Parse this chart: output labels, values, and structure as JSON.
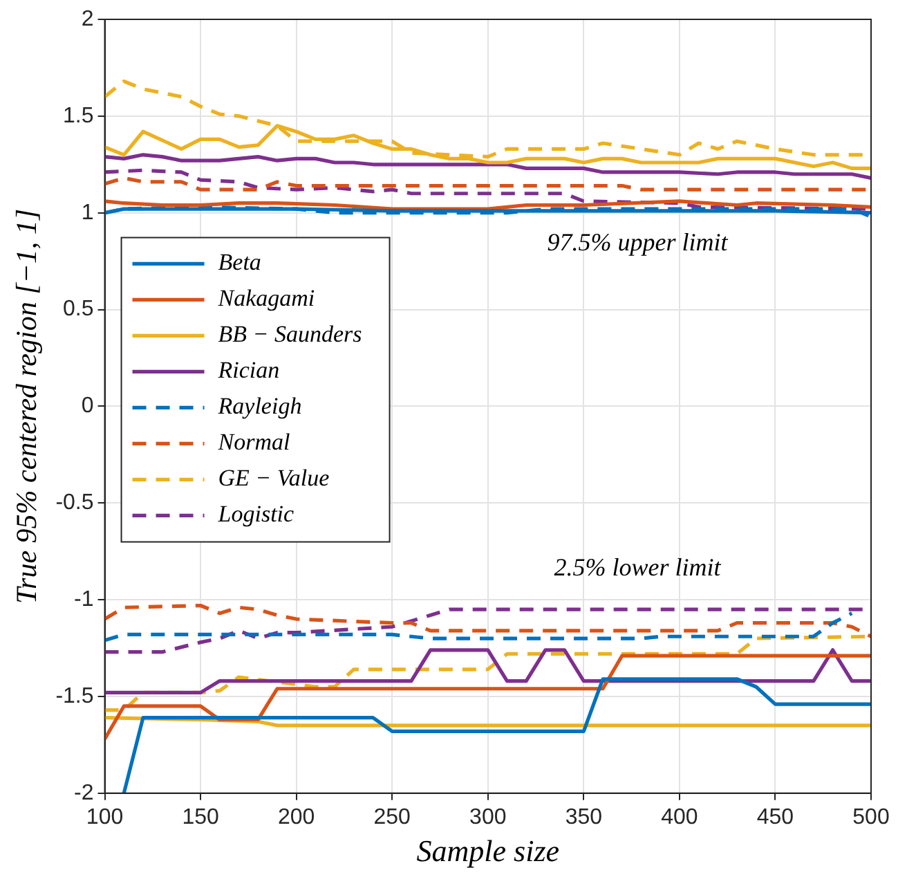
{
  "chart_data": {
    "type": "line",
    "xlabel": "Sample size",
    "ylabel": "True 95% centered region [−1, 1]",
    "xlim": [
      100,
      500
    ],
    "xticks": [
      100,
      150,
      200,
      250,
      300,
      350,
      400,
      450,
      500
    ],
    "ylim": [
      -2,
      2
    ],
    "yticks": [
      -2,
      -1.5,
      -1,
      -0.5,
      0,
      0.5,
      1,
      1.5,
      2
    ],
    "grid": true,
    "legend": "left",
    "marker": "none",
    "annotations": [
      "97.5% upper limit",
      "2.5% lower limit"
    ],
    "series": [
      {
        "name": "Beta",
        "color": "#0072bd",
        "line_style": "solid",
        "x": [
          100,
          110,
          150,
          200,
          250,
          300,
          350,
          400,
          450,
          500
        ],
        "values": [
          1.0,
          1.02,
          1.02,
          1.02,
          1.01,
          1.01,
          1.01,
          1.01,
          1.01,
          1.0
        ]
      },
      {
        "name": "Nakagami",
        "color": "#d95319",
        "line_style": "solid",
        "x": [
          100,
          110,
          130,
          150,
          170,
          190,
          220,
          250,
          280,
          300,
          320,
          350,
          400,
          430,
          440,
          480,
          500
        ],
        "values": [
          1.06,
          1.05,
          1.04,
          1.04,
          1.05,
          1.05,
          1.04,
          1.02,
          1.02,
          1.02,
          1.04,
          1.04,
          1.06,
          1.04,
          1.05,
          1.04,
          1.03
        ]
      },
      {
        "name": "BB − Saunders",
        "color": "#edb120",
        "line_style": "solid",
        "x": [
          100,
          110,
          120,
          140,
          150,
          160,
          170,
          180,
          190,
          200,
          210,
          220,
          230,
          240,
          250,
          260,
          270,
          280,
          290,
          300,
          310,
          320,
          330,
          340,
          350,
          360,
          370,
          380,
          390,
          400,
          410,
          420,
          450,
          470,
          480,
          490,
          500
        ],
        "values": [
          1.34,
          1.3,
          1.42,
          1.33,
          1.38,
          1.38,
          1.34,
          1.35,
          1.45,
          1.42,
          1.38,
          1.38,
          1.4,
          1.36,
          1.33,
          1.33,
          1.3,
          1.28,
          1.28,
          1.26,
          1.26,
          1.28,
          1.28,
          1.28,
          1.26,
          1.28,
          1.28,
          1.26,
          1.26,
          1.26,
          1.26,
          1.28,
          1.28,
          1.24,
          1.26,
          1.23,
          1.23
        ]
      },
      {
        "name": "Rician",
        "color": "#7e2f8e",
        "line_style": "solid",
        "x": [
          100,
          110,
          120,
          130,
          140,
          150,
          160,
          170,
          180,
          190,
          200,
          210,
          220,
          230,
          240,
          300,
          310,
          320,
          350,
          360,
          400,
          420,
          430,
          450,
          460,
          490,
          500
        ],
        "values": [
          1.29,
          1.28,
          1.3,
          1.29,
          1.27,
          1.27,
          1.27,
          1.28,
          1.29,
          1.27,
          1.28,
          1.28,
          1.26,
          1.26,
          1.25,
          1.25,
          1.25,
          1.23,
          1.23,
          1.21,
          1.21,
          1.2,
          1.21,
          1.21,
          1.2,
          1.2,
          1.18
        ]
      },
      {
        "name": "Rayleigh",
        "color": "#0072bd",
        "line_style": "dashed",
        "x": [
          100,
          110,
          150,
          200,
          220,
          260,
          290,
          310,
          330,
          400,
          450,
          490,
          500
        ],
        "values": [
          1.0,
          1.02,
          1.03,
          1.02,
          1.0,
          1.0,
          1.0,
          1.0,
          1.02,
          1.02,
          1.02,
          1.02,
          0.98
        ]
      },
      {
        "name": "Normal",
        "color": "#d95319",
        "line_style": "dashed",
        "x": [
          100,
          110,
          120,
          140,
          150,
          170,
          180,
          190,
          200,
          270,
          370,
          380,
          500
        ],
        "values": [
          1.15,
          1.18,
          1.16,
          1.16,
          1.12,
          1.12,
          1.12,
          1.16,
          1.14,
          1.14,
          1.14,
          1.12,
          1.12
        ]
      },
      {
        "name": "GE − Value",
        "color": "#edb120",
        "line_style": "dashed",
        "x": [
          100,
          110,
          120,
          140,
          150,
          160,
          170,
          190,
          200,
          250,
          260,
          300,
          310,
          350,
          360,
          400,
          410,
          420,
          430,
          450,
          470,
          500
        ],
        "values": [
          1.6,
          1.68,
          1.64,
          1.6,
          1.55,
          1.51,
          1.5,
          1.45,
          1.37,
          1.37,
          1.31,
          1.29,
          1.33,
          1.33,
          1.36,
          1.3,
          1.36,
          1.33,
          1.37,
          1.33,
          1.3,
          1.3
        ]
      },
      {
        "name": "Logistic",
        "color": "#7e2f8e",
        "line_style": "dashed",
        "x": [
          100,
          120,
          140,
          150,
          170,
          180,
          200,
          220,
          240,
          250,
          260,
          340,
          350,
          400,
          410,
          500
        ],
        "values": [
          1.21,
          1.22,
          1.21,
          1.17,
          1.16,
          1.13,
          1.12,
          1.13,
          1.11,
          1.12,
          1.1,
          1.1,
          1.06,
          1.05,
          1.03,
          1.02
        ]
      },
      {
        "color": "#0072bd",
        "line_style": "solid",
        "x": [
          110,
          120,
          240,
          250,
          350,
          360,
          430,
          440,
          450,
          500
        ],
        "values": [
          -2.0,
          -1.61,
          -1.61,
          -1.68,
          -1.68,
          -1.41,
          -1.41,
          -1.45,
          -1.54,
          -1.54
        ]
      },
      {
        "color": "#d95319",
        "line_style": "solid",
        "x": [
          100,
          110,
          150,
          160,
          180,
          190,
          360,
          370,
          500
        ],
        "values": [
          -1.72,
          -1.55,
          -1.55,
          -1.62,
          -1.62,
          -1.46,
          -1.46,
          -1.29,
          -1.29
        ]
      },
      {
        "color": "#edb120",
        "line_style": "solid",
        "x": [
          100,
          150,
          180,
          190,
          500
        ],
        "values": [
          -1.61,
          -1.62,
          -1.63,
          -1.65,
          -1.65
        ]
      },
      {
        "color": "#7e2f8e",
        "line_style": "solid",
        "x": [
          100,
          150,
          160,
          260,
          270,
          300,
          310,
          320,
          330,
          340,
          350,
          470,
          480,
          490,
          500
        ],
        "values": [
          -1.48,
          -1.48,
          -1.42,
          -1.42,
          -1.26,
          -1.26,
          -1.42,
          -1.42,
          -1.26,
          -1.26,
          -1.42,
          -1.42,
          -1.26,
          -1.42,
          -1.42
        ]
      },
      {
        "color": "#0072bd",
        "line_style": "dashed",
        "x": [
          100,
          110,
          250,
          270,
          380,
          390,
          470,
          480,
          490
        ],
        "values": [
          -1.21,
          -1.18,
          -1.18,
          -1.2,
          -1.2,
          -1.19,
          -1.19,
          -1.12,
          -1.07
        ]
      },
      {
        "color": "#d95319",
        "line_style": "dashed",
        "x": [
          100,
          110,
          150,
          160,
          170,
          180,
          190,
          200,
          250,
          260,
          270,
          420,
          430,
          480,
          490,
          500
        ],
        "values": [
          -1.1,
          -1.04,
          -1.03,
          -1.07,
          -1.04,
          -1.05,
          -1.08,
          -1.1,
          -1.12,
          -1.12,
          -1.16,
          -1.16,
          -1.12,
          -1.12,
          -1.14,
          -1.19
        ]
      },
      {
        "color": "#edb120",
        "line_style": "dashed",
        "x": [
          100,
          110,
          120,
          150,
          160,
          170,
          210,
          220,
          230,
          300,
          310,
          430,
          440,
          500
        ],
        "values": [
          -1.57,
          -1.57,
          -1.48,
          -1.48,
          -1.47,
          -1.4,
          -1.45,
          -1.45,
          -1.36,
          -1.36,
          -1.28,
          -1.28,
          -1.2,
          -1.19
        ]
      },
      {
        "color": "#7e2f8e",
        "line_style": "dashed",
        "x": [
          100,
          130,
          150,
          160,
          170,
          180,
          190,
          200,
          250,
          270,
          280,
          500
        ],
        "values": [
          -1.27,
          -1.27,
          -1.22,
          -1.2,
          -1.16,
          -1.2,
          -1.17,
          -1.17,
          -1.14,
          -1.08,
          -1.05,
          -1.05
        ]
      }
    ]
  }
}
